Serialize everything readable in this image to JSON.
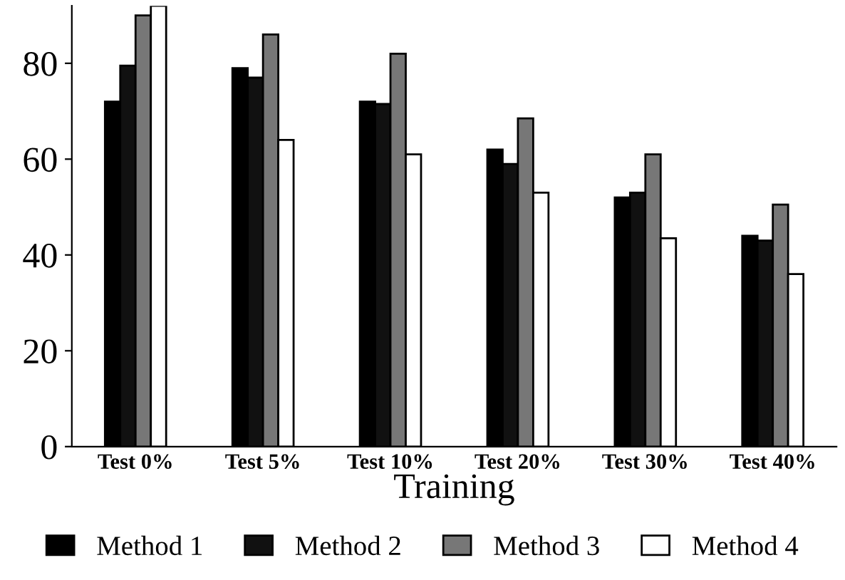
{
  "chart_data": {
    "type": "bar",
    "xlabel": "Training",
    "categories": [
      "Test 0%",
      "Test 5%",
      "Test 10%",
      "Test 20%",
      "Test 30%",
      "Test 40%"
    ],
    "series": [
      {
        "name": "Method 1",
        "color": "#000000",
        "values": [
          72,
          79,
          72,
          62,
          52,
          44
        ]
      },
      {
        "name": "Method 2",
        "color": "#111111",
        "values": [
          79.5,
          77,
          71.5,
          59,
          53,
          43
        ]
      },
      {
        "name": "Method 3",
        "color": "#777777",
        "values": [
          90,
          86,
          82,
          68.5,
          61,
          50.5
        ]
      },
      {
        "name": "Method 4",
        "color": "#ffffff",
        "values": [
          92,
          64,
          61,
          53,
          43.5,
          36
        ]
      }
    ],
    "ylim": [
      0,
      92
    ],
    "yticks": [
      0,
      20,
      40,
      60,
      80
    ],
    "grid": false,
    "legend": "bottom"
  }
}
